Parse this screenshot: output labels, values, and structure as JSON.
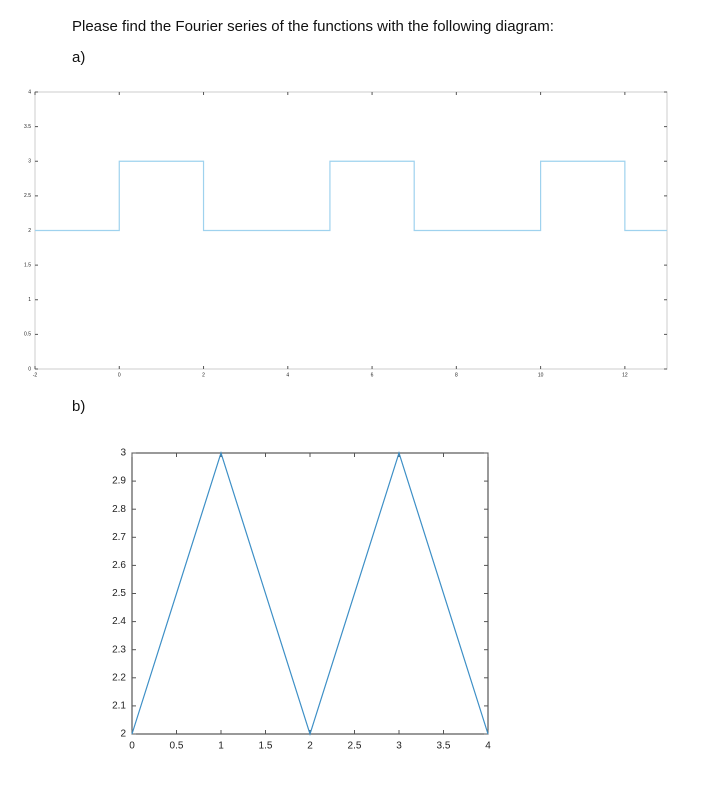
{
  "question": "Please find the Fourier series of the functions with the following diagram:",
  "part_a_label": "a)",
  "part_b_label": "b)",
  "chart_data": [
    {
      "type": "line",
      "color": "#9fd2ee",
      "x": [
        -2,
        0,
        0,
        2,
        2,
        5,
        5,
        7,
        7,
        10,
        10,
        12,
        12,
        13
      ],
      "values": [
        2,
        2,
        3,
        3,
        2,
        2,
        3,
        3,
        2,
        2,
        3,
        3,
        2,
        2
      ],
      "xlim": [
        -2,
        13
      ],
      "xticks": [
        -2,
        0,
        2,
        4,
        6,
        8,
        10,
        12
      ],
      "ylim": [
        0,
        4
      ],
      "yticks": [
        0,
        0.5,
        1,
        1.5,
        2,
        2.5,
        3,
        3.5,
        4
      ],
      "grid": false
    },
    {
      "type": "line",
      "color": "#3d8fc6",
      "x": [
        0,
        1,
        2,
        3,
        4
      ],
      "values": [
        2,
        3,
        2,
        3,
        2
      ],
      "xlim": [
        0,
        4
      ],
      "xticks": [
        0,
        0.5,
        1,
        1.5,
        2,
        2.5,
        3,
        3.5,
        4
      ],
      "ylim": [
        2,
        3
      ],
      "yticks": [
        2,
        2.1,
        2.2,
        2.3,
        2.4,
        2.5,
        2.6,
        2.7,
        2.8,
        2.9,
        3
      ],
      "grid": false
    }
  ]
}
